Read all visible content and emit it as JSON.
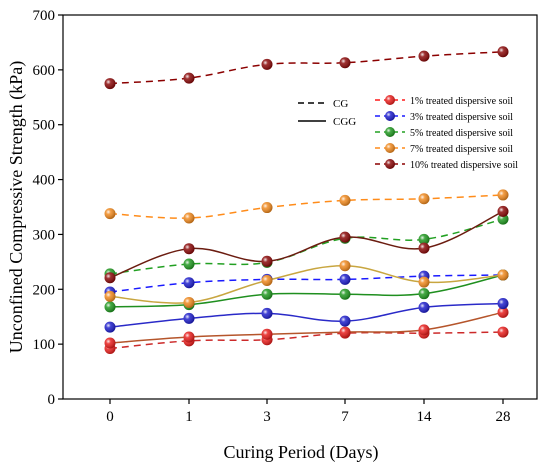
{
  "chart_data": {
    "type": "line",
    "x": [
      "0",
      "1",
      "3",
      "7",
      "14",
      "28"
    ],
    "xlabel": "Curing Period (Days)",
    "ylabel": "Unconfined Compressive Strength (kPa)",
    "ylim": [
      0,
      700
    ],
    "yticks": [
      "0",
      "100",
      "200",
      "300",
      "400",
      "500",
      "600",
      "700"
    ],
    "line_style_legend": [
      {
        "label": "CG",
        "style": "dashed"
      },
      {
        "label": "CGG",
        "style": "solid"
      }
    ],
    "series": [
      {
        "name": "1% treated dispersive soil",
        "color": "#ff1a1a",
        "marker_color": "#e8201e",
        "cg_values": [
          92,
          106,
          108,
          120,
          120,
          122
        ],
        "cgg_values": [
          102,
          113,
          118,
          122,
          126,
          158
        ],
        "cg_line_color": "#cc2a2a",
        "cgg_line_color": "#b5552b"
      },
      {
        "name": "3% treated dispersive soil",
        "color": "#1a1aff",
        "marker_color": "#2020cc",
        "cg_values": [
          195,
          212,
          218,
          218,
          224,
          226
        ],
        "cgg_values": [
          131,
          147,
          156,
          142,
          167,
          174
        ],
        "cg_line_color": "#1a1aff",
        "cgg_line_color": "#2a2ac8"
      },
      {
        "name": "5% treated dispersive soil",
        "color": "#22a022",
        "marker_color": "#229922",
        "cg_values": [
          228,
          246,
          249,
          293,
          291,
          328
        ],
        "cgg_values": [
          168,
          172,
          191,
          191,
          192,
          226
        ],
        "cg_line_color": "#22a022",
        "cgg_line_color": "#1f8f1f"
      },
      {
        "name": "7% treated dispersive soil",
        "color": "#ff8c1a",
        "marker_color": "#f08a20",
        "cg_values": [
          338,
          330,
          349,
          362,
          365,
          372
        ],
        "cgg_values": [
          187,
          176,
          216,
          243,
          213,
          226
        ],
        "cg_line_color": "#ff8c1a",
        "cgg_line_color": "#c8a640"
      },
      {
        "name": "10% treated dispersive soil",
        "color": "#8b0000",
        "marker_color": "#8b0a0a",
        "cg_values": [
          575,
          585,
          610,
          613,
          625,
          633
        ],
        "cgg_values": [
          221,
          274,
          251,
          295,
          275,
          342
        ],
        "cg_line_color": "#8b0000",
        "cgg_line_color": "#6b1c10"
      }
    ],
    "legend_position": "upper-right",
    "grid": false
  }
}
